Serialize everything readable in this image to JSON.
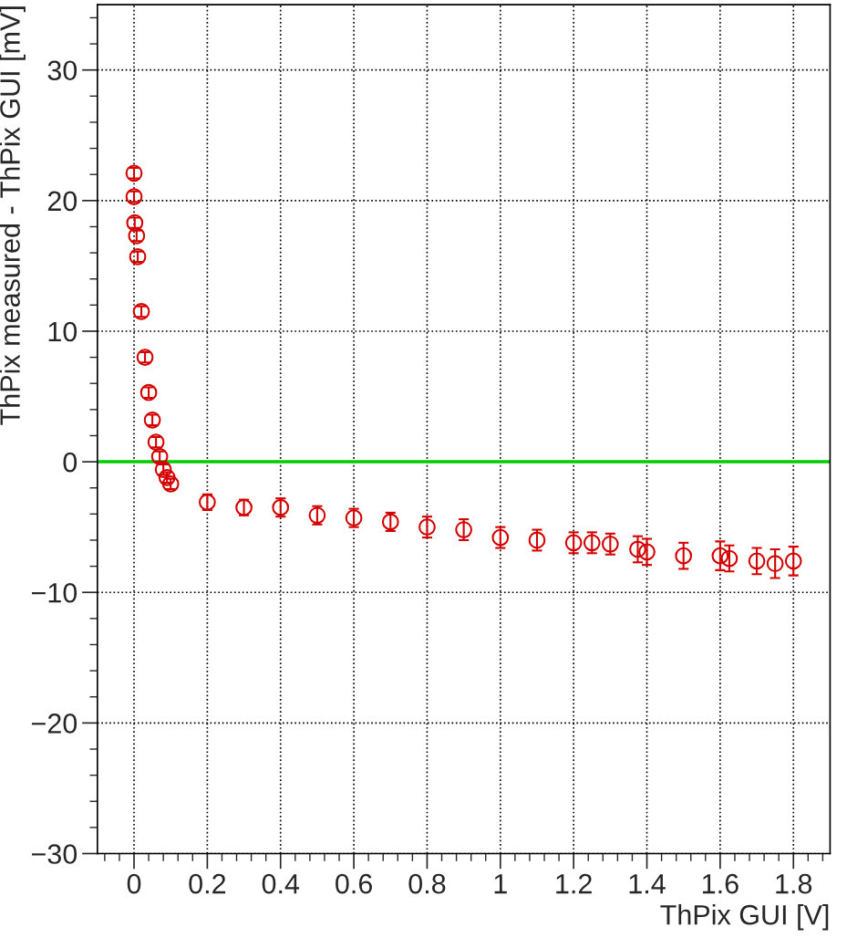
{
  "chart_data": {
    "type": "scatter",
    "xlabel": "ThPix GUI [V]",
    "ylabel": "ThPix measured - ThPix GUI [mV]",
    "x": [
      0,
      0,
      0.002,
      0.007,
      0.01,
      0.02,
      0.03,
      0.04,
      0.05,
      0.06,
      0.07,
      0.08,
      0.09,
      0.1,
      0.2,
      0.3,
      0.4,
      0.5,
      0.6,
      0.7,
      0.8,
      0.9,
      1.0,
      1.1,
      1.2,
      1.25,
      1.3,
      1.375,
      1.4,
      1.5,
      1.6,
      1.625,
      1.7,
      1.75,
      1.8
    ],
    "series": [
      {
        "color": "#d40000",
        "values": [
          22.1,
          20.3,
          18.3,
          17.3,
          15.7,
          11.5,
          8.0,
          5.3,
          3.2,
          1.5,
          0.4,
          -0.6,
          -1.2,
          -1.7,
          -3.1,
          -3.5,
          -3.5,
          -4.1,
          -4.3,
          -4.6,
          -5.0,
          -5.2,
          -5.8,
          -6.0,
          -6.2,
          -6.2,
          -6.3,
          -6.7,
          -6.9,
          -7.2,
          -7.2,
          -7.4,
          -7.6,
          -7.8,
          -7.6
        ],
        "errors": [
          0.4,
          0.4,
          0.4,
          0.4,
          0.4,
          0.4,
          0.4,
          0.4,
          0.4,
          0.4,
          0.4,
          0.4,
          0.4,
          0.4,
          0.6,
          0.6,
          0.7,
          0.7,
          0.7,
          0.7,
          0.8,
          0.8,
          0.8,
          0.8,
          0.8,
          0.8,
          0.8,
          1.0,
          1.0,
          1.0,
          1.1,
          1.0,
          1.0,
          1.1,
          1.1
        ]
      }
    ],
    "marker": "circle",
    "xlim": [
      -0.1,
      1.9
    ],
    "ylim": [
      -30,
      35
    ],
    "xticks": [
      0,
      0.2,
      0.4,
      0.6,
      0.8,
      1,
      1.2,
      1.4,
      1.6,
      1.8
    ],
    "yticks": [
      {
        "value": -30,
        "label": "−30"
      },
      {
        "value": -20,
        "label": "−20"
      },
      {
        "value": -10,
        "label": "−10"
      },
      0,
      10,
      20,
      30
    ],
    "ref_lines": [
      {
        "axis": "y",
        "value": 0,
        "color": "#00cc00"
      }
    ],
    "grid": true,
    "legend": false
  }
}
